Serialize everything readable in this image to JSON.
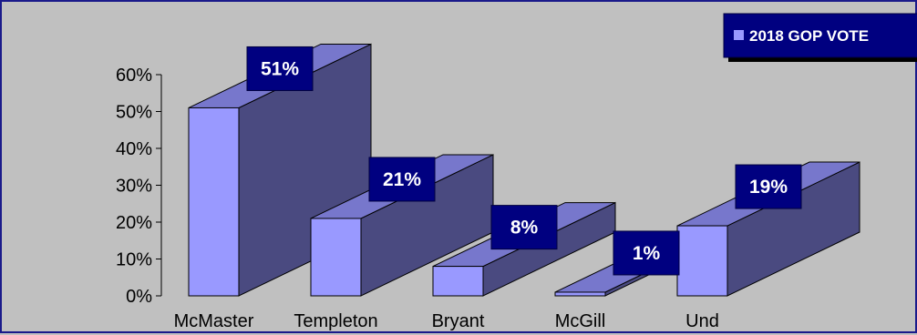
{
  "chart_data": {
    "type": "bar",
    "title": "",
    "xlabel": "",
    "ylabel": "",
    "categories": [
      "McMaster",
      "Templeton",
      "Bryant",
      "McGill",
      "Und"
    ],
    "series": [
      {
        "name": "2018 GOP VOTE",
        "values": [
          51,
          21,
          8,
          1,
          19
        ]
      }
    ],
    "data_labels": [
      "51%",
      "21%",
      "8%",
      "1%",
      "19%"
    ],
    "ylim": [
      0,
      60
    ],
    "yticks": [
      0,
      10,
      20,
      30,
      40,
      50,
      60
    ],
    "ytick_labels": [
      "0%",
      "10%",
      "20%",
      "30%",
      "40%",
      "50%",
      "60%"
    ],
    "grid": false,
    "legend_position": "top-right",
    "three_d": true,
    "colors": {
      "background": "#c0c0c0",
      "bar_front": "#9999ff",
      "bar_top": "#7777cc",
      "bar_side": "#4a4a80",
      "label_box": "#000080",
      "label_text": "#ffffff",
      "frame": "#1a1a8a"
    }
  }
}
